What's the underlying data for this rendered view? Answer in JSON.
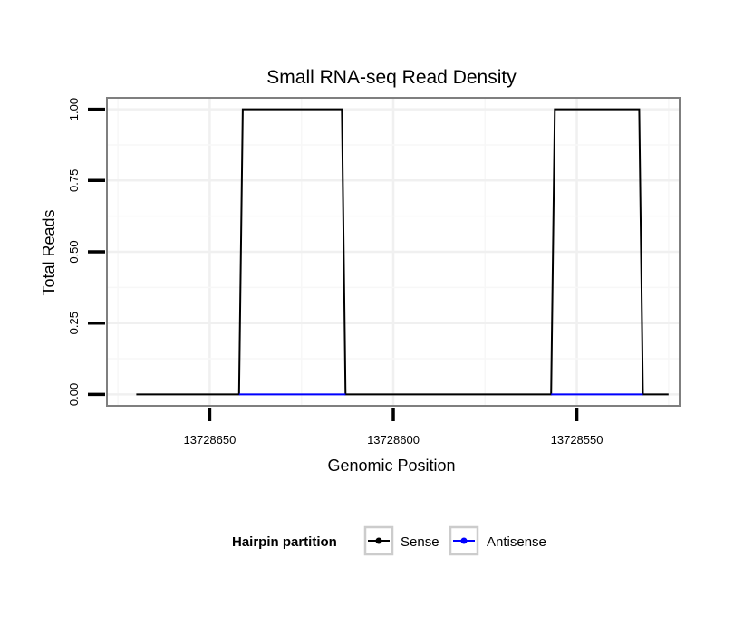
{
  "chart_data": {
    "type": "line",
    "title": "Small RNA-seq Read Density",
    "xlabel": "Genomic Position",
    "ylabel": "Total Reads",
    "x_reversed": true,
    "xlim": [
      13728678,
      13728522
    ],
    "ylim": [
      -0.04,
      1.04
    ],
    "x_ticks": [
      13728650,
      13728600,
      13728550
    ],
    "x_tick_labels": [
      "13728650",
      "13728600",
      "13728550"
    ],
    "y_ticks": [
      0,
      0.25,
      0.5,
      0.75,
      1
    ],
    "y_tick_labels": [
      "0.00",
      "0.25",
      "0.50",
      "0.75",
      "1.00"
    ],
    "grid": true,
    "legend": {
      "title": "Hairpin partition",
      "position": "bottom",
      "entries": [
        "Sense",
        "Antisense"
      ]
    },
    "series": [
      {
        "name": "Sense",
        "color": "#000000",
        "x": [
          13728670,
          13728642,
          13728641,
          13728614,
          13728613,
          13728557,
          13728556,
          13728533,
          13728532,
          13728525
        ],
        "y": [
          0,
          0,
          1,
          1,
          0,
          0,
          1,
          1,
          0,
          0
        ]
      },
      {
        "name": "Antisense",
        "color": "#0000ff",
        "x": [
          13728642,
          13728613,
          13728557,
          13728532
        ],
        "y": [
          0,
          0,
          0,
          0
        ],
        "segments": [
          [
            0,
            1
          ],
          [
            2,
            3
          ]
        ]
      }
    ]
  }
}
